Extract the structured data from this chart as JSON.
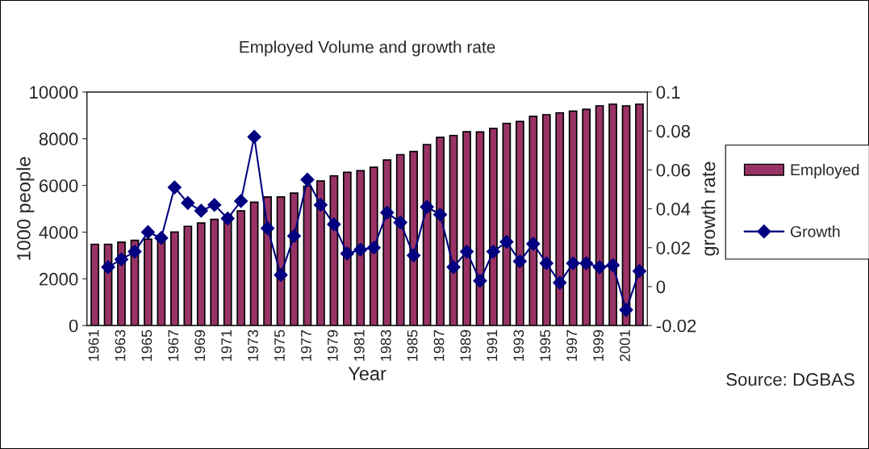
{
  "chart_data": {
    "type": "bar",
    "title": "Employed Volume and growth rate",
    "xlabel": "Year",
    "ylabel": "1000 people",
    "y2label": "growth rate",
    "categories": [
      "1961",
      null,
      "1963",
      null,
      "1965",
      null,
      "1967",
      null,
      "1969",
      null,
      "1971",
      null,
      "1973",
      null,
      "1975",
      null,
      "1977",
      null,
      "1979",
      null,
      "1981",
      null,
      "1983",
      null,
      "1985",
      null,
      "1987",
      null,
      "1989",
      null,
      "1991",
      null,
      "1993",
      null,
      "1995",
      null,
      "1997",
      null,
      "1999",
      null,
      "2001",
      null
    ],
    "series": [
      {
        "name": "Employed",
        "color": "#993366",
        "values": [
          3480,
          3480,
          3570,
          3650,
          3700,
          3840,
          4000,
          4250,
          4390,
          4550,
          4750,
          4910,
          5280,
          5510,
          5510,
          5670,
          5970,
          6190,
          6410,
          6560,
          6630,
          6780,
          7090,
          7320,
          7450,
          7750,
          8060,
          8140,
          8300,
          8290,
          8440,
          8660,
          8740,
          8960,
          9030,
          9110,
          9180,
          9260,
          9410,
          9480,
          9410,
          9480
        ]
      },
      {
        "name": "Growth",
        "type": "line",
        "axis": "y2",
        "color": "#000080",
        "marker": "diamond",
        "line_style": "solid",
        "values": [
          null,
          0.01,
          0.014,
          0.018,
          0.028,
          0.025,
          0.051,
          0.043,
          0.039,
          0.042,
          0.035,
          0.044,
          0.077,
          0.03,
          0.006,
          0.026,
          0.055,
          0.042,
          0.032,
          0.017,
          0.019,
          0.02,
          0.038,
          0.033,
          0.016,
          0.041,
          0.037,
          0.01,
          0.018,
          0.003,
          0.018,
          0.023,
          0.013,
          0.022,
          0.012,
          0.002,
          0.012,
          0.012,
          0.01,
          0.011,
          -0.012,
          0.008
        ]
      }
    ],
    "ylim": [
      0,
      10000
    ],
    "yticks": [
      0,
      2000,
      4000,
      6000,
      8000,
      10000
    ],
    "y2lim": [
      -0.02,
      0.1
    ],
    "y2ticks": [
      -0.02,
      0,
      0.02,
      0.04,
      0.06,
      0.08,
      0.1
    ],
    "grid": false,
    "legend": "right",
    "annotations": [
      "Source: DGBAS"
    ]
  }
}
